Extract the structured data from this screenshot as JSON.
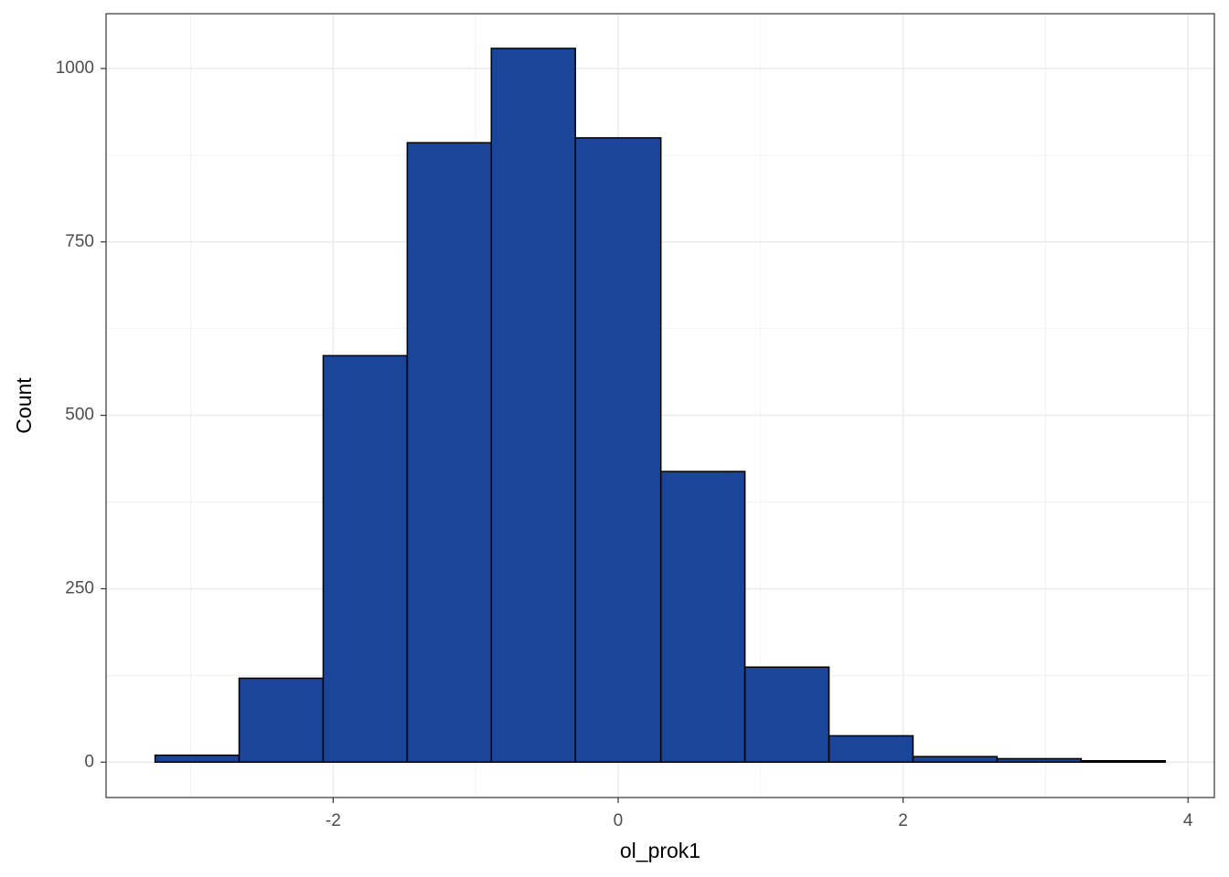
{
  "chart_data": {
    "type": "histogram",
    "x_label": "ol_prok1",
    "y_label": "Count",
    "bins": [
      -3.25,
      -2.66,
      -2.07,
      -1.48,
      -0.89,
      -0.3,
      0.3,
      0.89,
      1.48,
      2.07,
      2.66,
      3.25,
      3.84
    ],
    "values": [
      10,
      121,
      586,
      893,
      1029,
      900,
      419,
      137,
      38,
      8,
      5,
      2
    ],
    "color": "#1a4599",
    "edge_color": "#000000",
    "xlim": [
      -3.594,
      4.185
    ],
    "ylim": [
      -51,
      1079
    ],
    "xticks": [
      -2,
      0,
      2,
      4
    ],
    "yticks": [
      0,
      250,
      500,
      750,
      1000
    ],
    "xminor": [
      -3,
      -1,
      1,
      3
    ],
    "yminor": [
      125,
      375,
      625,
      875
    ],
    "grid": true
  }
}
